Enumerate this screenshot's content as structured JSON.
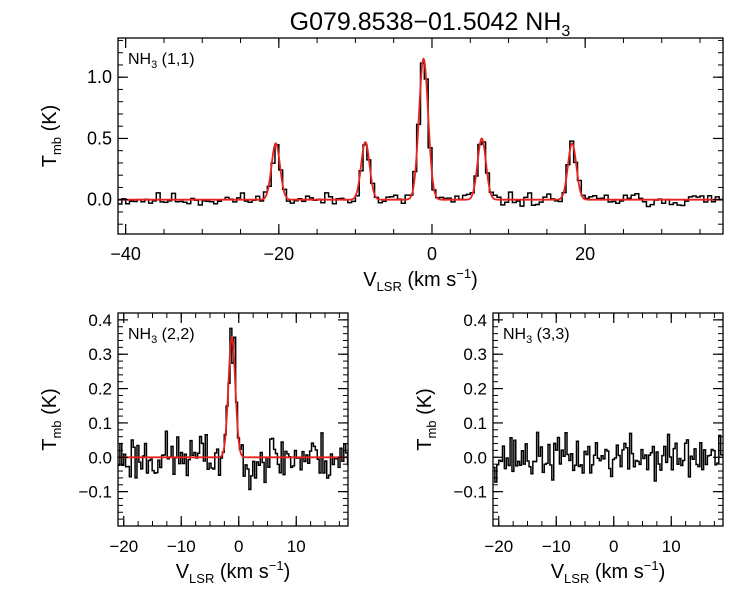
{
  "title": {
    "main": "G079.8538−01.5042 NH",
    "sub": "3"
  },
  "colors": {
    "observed": "#000000",
    "fit": "#e8231f",
    "axis": "#000000"
  },
  "chart_data": [
    {
      "type": "line",
      "panel_label": {
        "main": "NH",
        "sub": "3",
        "tail": " (1,1)"
      },
      "xlabel": {
        "main": "V",
        "sub": "LSR",
        "unit": " (km s",
        "exp": "−1",
        "close": ")"
      },
      "ylabel": {
        "main": "T",
        "sub": "mb",
        "unit": " (K)"
      },
      "xlim": [
        -41,
        38
      ],
      "ylim": [
        -0.28,
        1.32
      ],
      "xticks": [
        -40,
        -20,
        0,
        20
      ],
      "xtick_labels": [
        "−40",
        "−20",
        "0",
        "20"
      ],
      "yticks": [
        0.0,
        0.5,
        1.0
      ],
      "ytick_labels": [
        "0.0",
        "0.5",
        "1.0"
      ],
      "noise_rms": 0.035,
      "series": [
        {
          "role": "fit",
          "components": [
            {
              "center": -20.4,
              "amp": 0.46,
              "sigma": 0.55
            },
            {
              "center": -8.7,
              "amp": 0.47,
              "sigma": 0.55
            },
            {
              "center": -1.1,
              "amp": 1.15,
              "sigma": 0.6
            },
            {
              "center": 6.5,
              "amp": 0.5,
              "sigma": 0.55
            },
            {
              "center": 18.3,
              "amp": 0.46,
              "sigma": 0.55
            }
          ]
        }
      ]
    },
    {
      "type": "line",
      "panel_label": {
        "main": "NH",
        "sub": "3",
        "tail": " (2,2)"
      },
      "xlabel": {
        "main": "V",
        "sub": "LSR",
        "unit": " (km s",
        "exp": "−1",
        "close": ")"
      },
      "ylabel": {
        "main": "T",
        "sub": "mb",
        "unit": " (K)"
      },
      "xlim": [
        -21,
        19
      ],
      "ylim": [
        -0.2,
        0.42
      ],
      "xticks": [
        -20,
        -10,
        0,
        10
      ],
      "xtick_labels": [
        "−20",
        "−10",
        "0",
        "10"
      ],
      "yticks": [
        -0.1,
        0.0,
        0.1,
        0.2,
        0.3,
        0.4
      ],
      "ytick_labels": [
        "−0.1",
        "0.0",
        "0.1",
        "0.2",
        "0.3",
        "0.4"
      ],
      "noise_rms": 0.045,
      "series": [
        {
          "role": "fit",
          "components": [
            {
              "center": -1.2,
              "amp": 0.35,
              "sigma": 0.6
            }
          ]
        }
      ]
    },
    {
      "type": "line",
      "panel_label": {
        "main": "NH",
        "sub": "3",
        "tail": " (3,3)"
      },
      "xlabel": {
        "main": "V",
        "sub": "LSR",
        "unit": " (km s",
        "exp": "−1",
        "close": ")"
      },
      "ylabel": {
        "main": "T",
        "sub": "mb",
        "unit": " (K)"
      },
      "xlim": [
        -21,
        19
      ],
      "ylim": [
        -0.2,
        0.42
      ],
      "xticks": [
        -20,
        -10,
        0,
        10
      ],
      "xtick_labels": [
        "−20",
        "−10",
        "0",
        "10"
      ],
      "yticks": [
        -0.1,
        0.0,
        0.1,
        0.2,
        0.3,
        0.4
      ],
      "ytick_labels": [
        "−0.1",
        "0.0",
        "0.1",
        "0.2",
        "0.3",
        "0.4"
      ],
      "noise_rms": 0.04,
      "series": []
    }
  ]
}
